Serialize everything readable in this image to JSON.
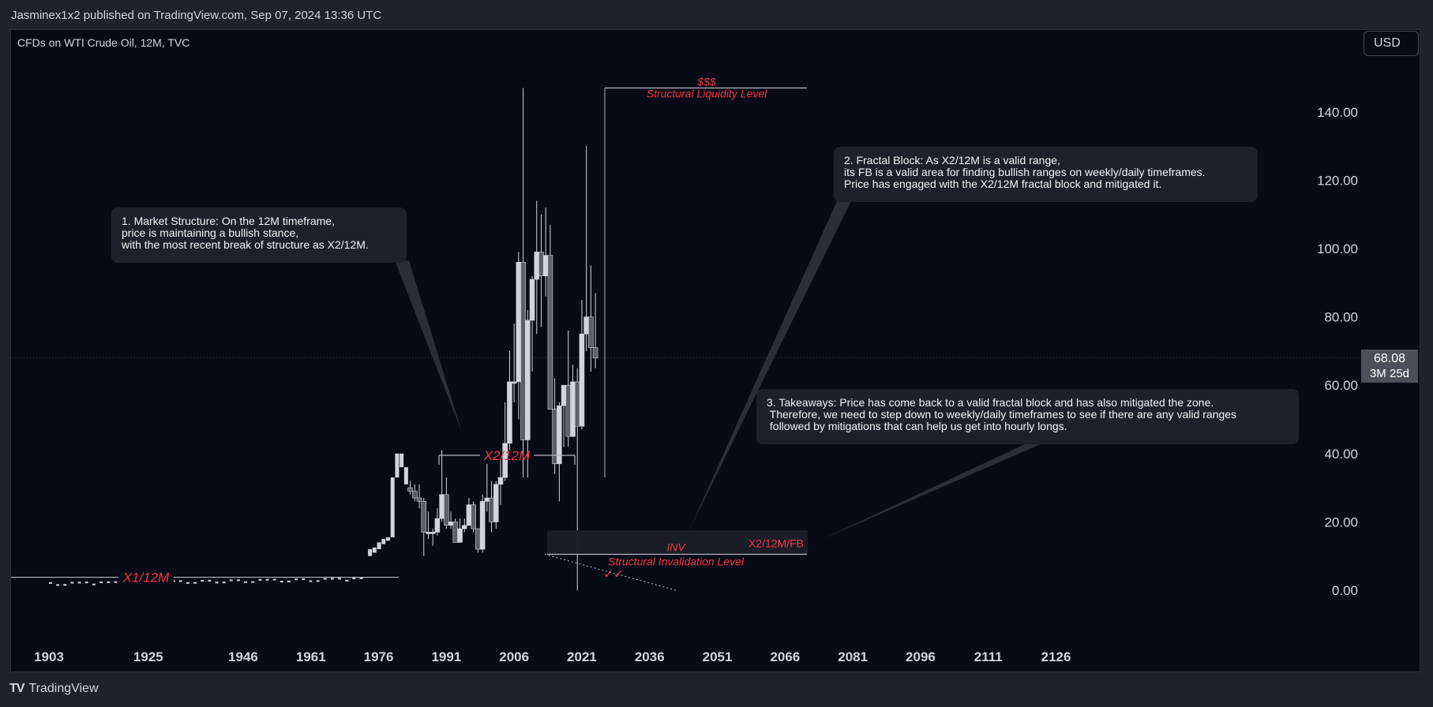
{
  "header": {
    "published": "Jasminex1x2 published on TradingView.com, Sep 07, 2024 13:36 UTC",
    "symbol": "CFDs on WTI Crude Oil, 12M, TVC",
    "currency": "USD"
  },
  "price_badge": {
    "price": "68.08",
    "countdown": "3M 25d"
  },
  "footer": {
    "brand": "TradingView",
    "logo_icon": "tradingview-logo-icon"
  },
  "annotations": {
    "box1": "1. Market Structure: On the 12M timeframe,\nprice is maintaining a bullish stance,\nwith the most recent break of structure as X2/12M.",
    "box2": "2. Fractal Block: As X2/12M is a valid range,\nits FB is a valid area for finding bullish ranges on weekly/daily timeframes.\nPrice has engaged with the X2/12M fractal block and mitigated it.",
    "box3": "3. Takeaways: Price has come back to a valid fractal block and has also mitigated the zone.\n Therefore, we need to step down to weekly/daily timeframes to see if there are any valid ranges\n followed by mitigations that can help us get into hourly longs.",
    "x1": "X1/12M",
    "x2": "X2/12M",
    "sss": "$$$",
    "liquidity": "Structural Liquidity Level",
    "fb": "X2/12M/FB",
    "inv": "INV",
    "invalidation": "Structural Invalidation Level",
    "checks": "✓✓"
  },
  "colors": {
    "background": "#070b16",
    "frame": "#1e222d",
    "accent_red": "#f23645",
    "candle_up": "#d1d4dc",
    "candle_down": "#5d606b",
    "grid_text": "#d1d4dc"
  },
  "chart_data": {
    "type": "candlestick",
    "title": "CFDs on WTI Crude Oil, 12M, TVC",
    "xlabel": "",
    "ylabel": "",
    "x_ticks": [
      "1903",
      "1925",
      "1946",
      "1961",
      "1976",
      "1991",
      "2006",
      "2021",
      "2036",
      "2051",
      "2066",
      "2081",
      "2096",
      "2111",
      "2126"
    ],
    "y_ticks": [
      0,
      20,
      40,
      60,
      80,
      100,
      120,
      140
    ],
    "ylim": [
      -15,
      160
    ],
    "last_price": 68.08,
    "series": [
      {
        "name": "candles",
        "values": [
          {
            "year": 1983,
            "o": 30,
            "h": 32,
            "l": 28,
            "c": 29
          },
          {
            "year": 1984,
            "o": 29,
            "h": 31,
            "l": 26,
            "c": 27
          },
          {
            "year": 1985,
            "o": 27,
            "h": 31,
            "l": 24,
            "c": 26
          },
          {
            "year": 1986,
            "o": 26,
            "h": 27,
            "l": 10,
            "c": 17
          },
          {
            "year": 1987,
            "o": 17,
            "h": 23,
            "l": 15,
            "c": 17
          },
          {
            "year": 1988,
            "o": 17,
            "h": 18,
            "l": 13,
            "c": 17
          },
          {
            "year": 1989,
            "o": 17,
            "h": 24,
            "l": 16,
            "c": 21
          },
          {
            "year": 1990,
            "o": 21,
            "h": 41,
            "l": 20,
            "c": 28
          },
          {
            "year": 1991,
            "o": 28,
            "h": 33,
            "l": 18,
            "c": 19
          },
          {
            "year": 1992,
            "o": 19,
            "h": 23,
            "l": 18,
            "c": 20
          },
          {
            "year": 1993,
            "o": 20,
            "h": 21,
            "l": 14,
            "c": 14
          },
          {
            "year": 1994,
            "o": 14,
            "h": 21,
            "l": 14,
            "c": 18
          },
          {
            "year": 1995,
            "o": 18,
            "h": 21,
            "l": 17,
            "c": 19
          },
          {
            "year": 1996,
            "o": 19,
            "h": 27,
            "l": 19,
            "c": 25
          },
          {
            "year": 1997,
            "o": 25,
            "h": 26,
            "l": 17,
            "c": 18
          },
          {
            "year": 1998,
            "o": 18,
            "h": 18,
            "l": 11,
            "c": 12
          },
          {
            "year": 1999,
            "o": 12,
            "h": 28,
            "l": 11,
            "c": 26
          },
          {
            "year": 2000,
            "o": 26,
            "h": 37,
            "l": 23,
            "c": 27
          },
          {
            "year": 2001,
            "o": 27,
            "h": 32,
            "l": 17,
            "c": 20
          },
          {
            "year": 2002,
            "o": 20,
            "h": 32,
            "l": 18,
            "c": 31
          },
          {
            "year": 2003,
            "o": 31,
            "h": 38,
            "l": 25,
            "c": 33
          },
          {
            "year": 2004,
            "o": 33,
            "h": 55,
            "l": 32,
            "c": 43
          },
          {
            "year": 2005,
            "o": 43,
            "h": 70,
            "l": 41,
            "c": 61
          },
          {
            "year": 2006,
            "o": 61,
            "h": 78,
            "l": 55,
            "c": 61
          },
          {
            "year": 2007,
            "o": 61,
            "h": 99,
            "l": 50,
            "c": 96
          },
          {
            "year": 2008,
            "o": 96,
            "h": 147,
            "l": 33,
            "c": 44
          },
          {
            "year": 2009,
            "o": 44,
            "h": 82,
            "l": 33,
            "c": 79
          },
          {
            "year": 2010,
            "o": 79,
            "h": 92,
            "l": 64,
            "c": 91
          },
          {
            "year": 2011,
            "o": 91,
            "h": 114,
            "l": 75,
            "c": 99
          },
          {
            "year": 2012,
            "o": 99,
            "h": 110,
            "l": 77,
            "c": 92
          },
          {
            "year": 2013,
            "o": 92,
            "h": 112,
            "l": 86,
            "c": 98
          },
          {
            "year": 2014,
            "o": 98,
            "h": 107,
            "l": 53,
            "c": 53
          },
          {
            "year": 2015,
            "o": 53,
            "h": 62,
            "l": 34,
            "c": 37
          },
          {
            "year": 2016,
            "o": 37,
            "h": 55,
            "l": 26,
            "c": 54
          },
          {
            "year": 2017,
            "o": 54,
            "h": 60,
            "l": 42,
            "c": 60
          },
          {
            "year": 2018,
            "o": 60,
            "h": 76,
            "l": 42,
            "c": 45
          },
          {
            "year": 2019,
            "o": 45,
            "h": 66,
            "l": 45,
            "c": 61
          },
          {
            "year": 2020,
            "o": 61,
            "h": 65,
            "l": 0,
            "c": 48
          },
          {
            "year": 2021,
            "o": 48,
            "h": 85,
            "l": 47,
            "c": 75
          },
          {
            "year": 2022,
            "o": 75,
            "h": 130,
            "l": 70,
            "c": 80
          },
          {
            "year": 2023,
            "o": 80,
            "h": 95,
            "l": 64,
            "c": 71
          },
          {
            "year": 2024,
            "o": 71,
            "h": 87,
            "l": 65,
            "c": 68
          }
        ]
      }
    ],
    "annotations": [
      {
        "label": "X1/12M",
        "level": 3.8
      },
      {
        "label": "X2/12M",
        "level": 39.5
      },
      {
        "label": "Structural Liquidity Level",
        "level": 147
      },
      {
        "label": "X2/12M/FB",
        "zone": [
          10.5,
          17.5
        ]
      },
      {
        "label": "Structural Invalidation Level",
        "level": 10.5
      }
    ]
  }
}
